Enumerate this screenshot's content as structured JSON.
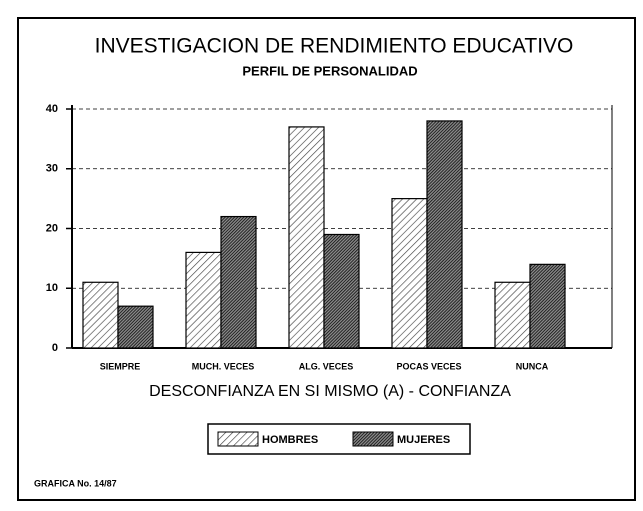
{
  "chart_data": {
    "type": "bar",
    "title": "INVESTIGACION DE RENDIMIENTO EDUCATIVO",
    "subtitle": "PERFIL DE PERSONALIDAD",
    "x_label": "DESCONFIANZA EN SI MISMO (A) - CONFIANZA",
    "categories": [
      "SIEMPRE",
      "MUCH. VECES",
      "ALG. VECES",
      "POCAS VECES",
      "NUNCA"
    ],
    "series": [
      {
        "name": "HOMBRES",
        "color": "#444444",
        "values": [
          11,
          16,
          37,
          25,
          11
        ]
      },
      {
        "name": "MUJERES",
        "color": "#111111",
        "values": [
          7,
          22,
          19,
          38,
          14
        ]
      }
    ],
    "ylim": [
      0,
      40
    ],
    "yticks": [
      0,
      10,
      20,
      30,
      40
    ],
    "grid": true,
    "note": "GRAFICA No. 14/87"
  }
}
